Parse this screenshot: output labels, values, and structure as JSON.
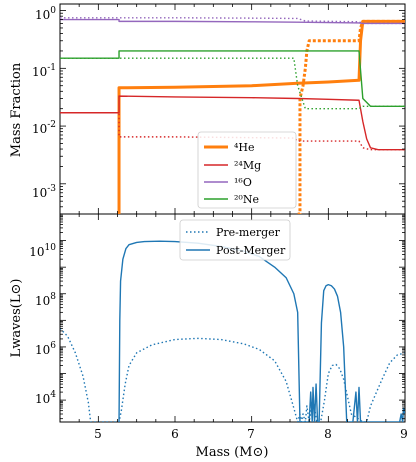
{
  "chart_data": [
    {
      "type": "line",
      "ylabel": "Mass Fraction",
      "yscale": "log",
      "xlim": [
        4.5,
        9.0
      ],
      "ylim": [
        0.0003,
        1.3
      ],
      "y_tick_labels": [
        "10",
        "10",
        "10",
        "10"
      ],
      "y_tick_exps": [
        "0",
        "-1",
        "-2",
        "-3"
      ],
      "legend": {
        "position": "lower-center",
        "entries": [
          "⁴He",
          "²⁴Mg",
          "¹⁶O",
          "²⁰Ne"
        ]
      },
      "series": [
        {
          "name": "⁴He",
          "style": "solid",
          "color": "#ff7f0e",
          "x": [
            5.27,
            5.27,
            6.0,
            7.0,
            7.6,
            8.0,
            8.4,
            8.42,
            8.45,
            9.0
          ],
          "y": [
            0.0003,
            0.046,
            0.047,
            0.05,
            0.055,
            0.058,
            0.062,
            0.3,
            0.65,
            0.65
          ]
        },
        {
          "name": "⁴He pre-merger",
          "style": "dotted",
          "color": "#ff7f0e",
          "x": [
            7.6,
            7.63,
            7.63,
            7.67,
            7.7,
            7.72,
            7.75,
            7.8,
            8.4,
            8.42,
            8.45,
            9.0
          ],
          "y": [
            0.0003,
            0.0003,
            0.03,
            0.05,
            0.1,
            0.2,
            0.3,
            0.3,
            0.3,
            0.5,
            0.65,
            0.65
          ]
        },
        {
          "name": "²⁴Mg",
          "style": "solid",
          "color": "#d62728",
          "x": [
            4.5,
            5.27,
            5.27,
            6.0,
            7.0,
            7.6,
            8.0,
            8.4,
            8.45,
            8.5,
            8.55,
            8.65,
            9.0
          ],
          "y": [
            0.017,
            0.017,
            0.033,
            0.032,
            0.031,
            0.03,
            0.029,
            0.028,
            0.012,
            0.006,
            0.0042,
            0.0039,
            0.0039
          ]
        },
        {
          "name": "²⁴Mg pre-merger",
          "style": "dotted",
          "color": "#d62728",
          "x": [
            4.5,
            5.27,
            5.27,
            6.0,
            7.0,
            7.55,
            7.6,
            7.7,
            8.4,
            8.45,
            8.55,
            9.0
          ],
          "y": [
            0.017,
            0.017,
            0.0065,
            0.0065,
            0.0063,
            0.0062,
            0.0055,
            0.0055,
            0.0055,
            0.0042,
            0.0039,
            0.0039
          ]
        },
        {
          "name": "¹⁶O",
          "style": "solid",
          "color": "#9467bd",
          "x": [
            4.5,
            5.27,
            5.27,
            6.0,
            7.0,
            7.6,
            8.0,
            8.4,
            8.45,
            9.0
          ],
          "y": [
            0.7,
            0.7,
            0.65,
            0.65,
            0.64,
            0.63,
            0.62,
            0.61,
            0.6,
            0.6
          ]
        },
        {
          "name": "¹⁶O pre-merger",
          "style": "dotted",
          "color": "#9467bd",
          "x": [
            4.5,
            5.27,
            6.0,
            7.0,
            7.6,
            7.7,
            8.4,
            8.45,
            9.0
          ],
          "y": [
            0.75,
            0.75,
            0.75,
            0.74,
            0.73,
            0.66,
            0.64,
            0.6,
            0.6
          ]
        },
        {
          "name": "²⁰Ne",
          "style": "solid",
          "color": "#2ca02c",
          "x": [
            4.5,
            5.27,
            5.27,
            6.0,
            7.0,
            7.6,
            8.0,
            8.4,
            8.45,
            8.55,
            9.0
          ],
          "y": [
            0.15,
            0.15,
            0.2,
            0.2,
            0.2,
            0.2,
            0.2,
            0.2,
            0.03,
            0.022,
            0.022
          ]
        },
        {
          "name": "²⁰Ne pre-merger",
          "style": "dotted",
          "color": "#2ca02c",
          "x": [
            4.5,
            5.27,
            6.0,
            7.0,
            7.55,
            7.6,
            7.7,
            8.4,
            8.45,
            8.55,
            9.0
          ],
          "y": [
            0.15,
            0.15,
            0.15,
            0.15,
            0.15,
            0.05,
            0.02,
            0.02,
            0.022,
            0.022,
            0.022
          ]
        }
      ]
    },
    {
      "type": "line",
      "xlabel": "Mass (M⊙)",
      "ylabel": "Lwaves(L⊙)",
      "yscale": "log",
      "xlim": [
        4.5,
        9.0
      ],
      "ylim": [
        1500,
        100000000000.0
      ],
      "x_ticks": [
        "5",
        "6",
        "7",
        "8",
        "9"
      ],
      "y_tick_labels": [
        "10",
        "10",
        "10",
        "10"
      ],
      "y_tick_exps": [
        "4",
        "6",
        "8",
        "10"
      ],
      "legend": {
        "position": "top-center",
        "entries": [
          "Pre-merger",
          "Post-Merger"
        ]
      },
      "series": [
        {
          "name": "Pre-merger",
          "style": "dotted",
          "color": "#1f77b4",
          "x": [
            4.5,
            4.6,
            4.7,
            4.8,
            4.87,
            4.9,
            4.92,
            5.27,
            5.3,
            5.35,
            5.4,
            5.5,
            5.7,
            6.0,
            6.3,
            6.6,
            6.9,
            7.1,
            7.3,
            7.45,
            7.55,
            7.6,
            7.63,
            7.65,
            7.67,
            7.7,
            7.72,
            7.75,
            7.8,
            7.85,
            7.9,
            7.95,
            8.0,
            8.05,
            8.1,
            8.15,
            8.2,
            8.3,
            8.45,
            8.5,
            8.55,
            8.7,
            8.8,
            8.9,
            9.0
          ],
          "y": [
            5000000.0,
            2500000.0,
            600000.0,
            80000.0,
            8000,
            1500,
            1500,
            1500,
            4000,
            40000,
            200000.0,
            600000.0,
            1200000.0,
            1900000.0,
            2100000.0,
            1900000.0,
            1300000.0,
            800000.0,
            300000.0,
            50000.0,
            5000,
            1500,
            3000,
            1500,
            3000,
            1500,
            6000,
            1500,
            12000,
            1500,
            1500,
            10000,
            100000.0,
            200000.0,
            220000.0,
            150000.0,
            60000.0,
            3000,
            1500,
            1500,
            6000,
            60000.0,
            250000.0,
            500000.0,
            600000.0
          ]
        },
        {
          "name": "Post-Merger",
          "style": "solid",
          "color": "#1f77b4",
          "x": [
            5.27,
            5.28,
            5.29,
            5.32,
            5.36,
            5.4,
            5.5,
            5.6,
            5.8,
            6.0,
            6.3,
            6.6,
            6.9,
            7.1,
            7.3,
            7.45,
            7.55,
            7.6,
            7.63,
            7.68,
            7.72,
            7.75,
            7.77,
            7.79,
            7.8,
            7.82,
            7.84,
            7.86,
            7.88,
            7.91,
            7.94,
            7.97,
            8.0,
            8.04,
            8.08,
            8.12,
            8.16,
            8.2,
            8.24,
            8.28,
            8.32,
            8.36,
            8.38,
            8.4,
            8.42,
            8.43,
            8.44,
            8.46,
            8.48,
            8.5,
            8.52,
            8.55,
            8.58,
            8.62,
            8.66,
            8.7,
            8.74,
            8.78,
            8.82,
            8.86,
            8.9,
            8.93,
            8.95,
            8.97,
            8.98,
            9.0
          ],
          "y": [
            1500,
            10000000.0,
            300000000.0,
            2000000000.0,
            5000000000.0,
            7000000000.0,
            8500000000.0,
            9200000000.0,
            9500000000.0,
            9200000000.0,
            8000000000.0,
            6000000000.0,
            4000000000.0,
            2500000000.0,
            1000000000.0,
            400000000.0,
            100000000.0,
            20000000.0,
            1500,
            1500,
            1500,
            1500,
            20000.0,
            1500,
            30000.0,
            1500,
            40000.0,
            1500,
            1500,
            8000000.0,
            130000000.0,
            200000000.0,
            220000000.0,
            200000000.0,
            150000000.0,
            80000000.0,
            20000000.0,
            1000000.0,
            1500,
            1500,
            1500,
            20000.0,
            1500,
            30000.0,
            1500,
            1500,
            1500,
            1500,
            1500,
            1500,
            1500,
            1500,
            1500,
            1500,
            1500,
            1500,
            1500,
            1500,
            1500,
            1500,
            1500,
            1500,
            3000,
            1500,
            5000,
            3000
          ]
        }
      ]
    }
  ]
}
